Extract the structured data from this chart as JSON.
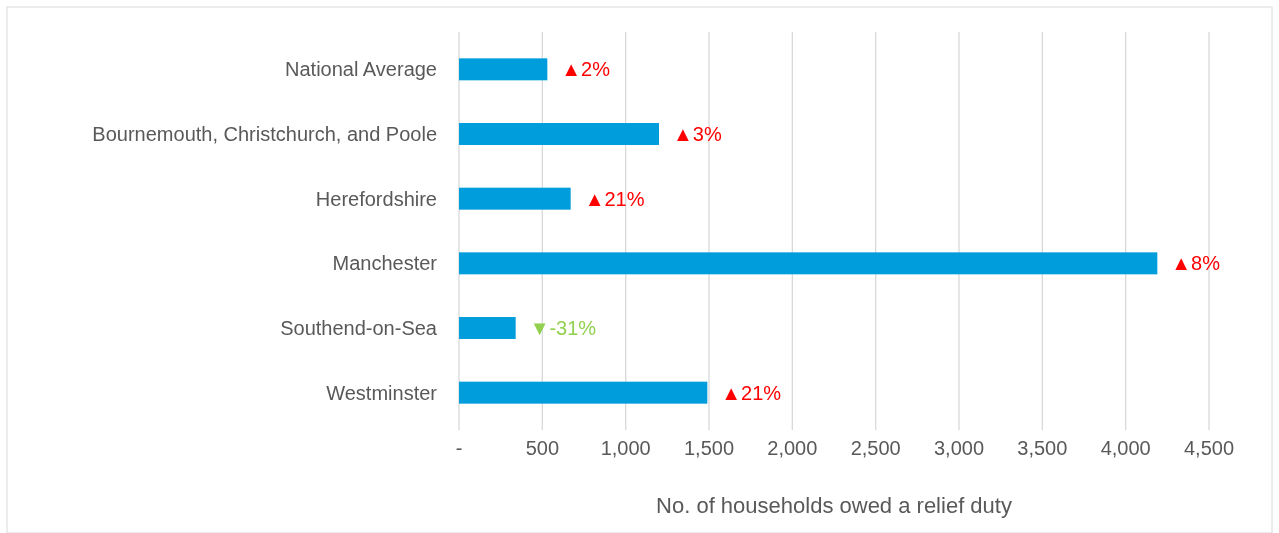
{
  "chart_data": {
    "type": "bar",
    "orientation": "horizontal",
    "xlabel": "No. of households owed a relief duty",
    "categories": [
      "National Average",
      "Bournemouth, Christchurch, and Poole",
      "Herefordshire",
      "Manchester",
      "Southend-on-Sea",
      "Westminster"
    ],
    "values": [
      530,
      1200,
      670,
      4190,
      340,
      1490
    ],
    "annotations": [
      {
        "text": "▲2%",
        "x": 530,
        "y": "National Average"
      },
      {
        "text": "▲3%",
        "x": 1200,
        "y": "Bournemouth, Christchurch, and Poole"
      },
      {
        "text": "▲21%",
        "x": 670,
        "y": "Herefordshire"
      },
      {
        "text": "▲8%",
        "x": 4190,
        "y": "Manchester"
      },
      {
        "text": "▼-31%",
        "x": 340,
        "y": "Southend-on-Sea"
      },
      {
        "text": "▲21%",
        "x": 1490,
        "y": "Westminster"
      }
    ],
    "color": "#009ddc",
    "xlim": [
      0,
      4500
    ],
    "xticks": [
      {
        "value": 0,
        "label": "-"
      },
      {
        "value": 500,
        "label": "500"
      },
      {
        "value": 1000,
        "label": "1,000"
      },
      {
        "value": 1500,
        "label": "1,500"
      },
      {
        "value": 2000,
        "label": "2,000"
      },
      {
        "value": 2500,
        "label": "2,500"
      },
      {
        "value": 3000,
        "label": "3,000"
      },
      {
        "value": 3500,
        "label": "3,500"
      },
      {
        "value": 4000,
        "label": "4,000"
      },
      {
        "value": 4500,
        "label": "4,500"
      }
    ],
    "grid": "x"
  }
}
